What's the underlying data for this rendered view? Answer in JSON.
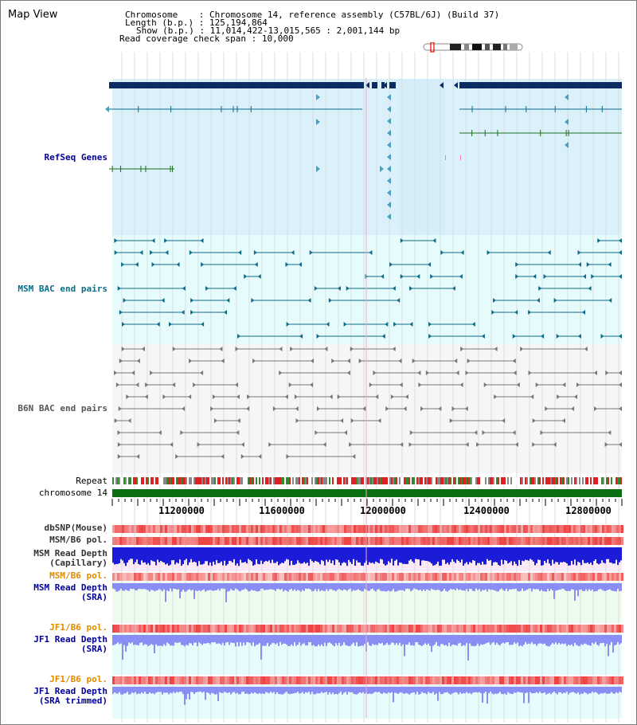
{
  "title": "Map View",
  "info": {
    "chromosome_key": "Chromosome",
    "chromosome_val": "Chromosome 14, reference assembly (C57BL/6J) (Build 37)",
    "length_key": "Length (b.p.)",
    "length_val": "125,194,864",
    "show_key": "Show (b.p.)",
    "show_val": "11,014,422-13,015,565 : 2,001,144 bp",
    "coverage_key": "Read coverage check span",
    "coverage_val": "10,000"
  },
  "tracks": {
    "refseq": "RefSeq Genes",
    "msm_bac": "MSM BAC end pairs",
    "b6n_bac": "B6N BAC end pairs",
    "repeat": "Repeat",
    "chromosome": "chromosome 14",
    "dbsnp": "dbSNP(Mouse)",
    "msm_b6_pol": "MSM/B6 pol.",
    "msm_depth_cap_1": "MSM Read Depth",
    "msm_depth_cap_2": "(Capillary)",
    "msm_b6_pol2": "MSM/B6 pol.",
    "msm_depth_sra_1": "MSM Read Depth",
    "msm_depth_sra_2": "(SRA)",
    "jf1_b6_pol": "JF1/B6 pol.",
    "jf1_depth_sra_1": "JF1 Read Depth",
    "jf1_depth_sra_2": "(SRA)",
    "jf1_b6_pol2": "JF1/B6 pol.",
    "jf1_depth_trim_1": "JF1 Read Depth",
    "jf1_depth_trim_2": "(SRA trimmed)"
  },
  "axis": {
    "ticks": [
      "11200000",
      "11600000",
      "12000000",
      "12400000",
      "12800000"
    ]
  },
  "colors": {
    "refseq_bg": "#daf0fb",
    "msm_bg": "#e6fbfb",
    "b6n_bg": "#f6f6f8",
    "chromosome_bar": "#0a6e12",
    "gene_dark": "#0c2d63",
    "msm_line": "#0e6c8a",
    "b6n_line": "#777777",
    "depth_blue": "#1b1bd8",
    "depth_light": "#8a8ef4",
    "pol_red": "#ee4444"
  }
}
